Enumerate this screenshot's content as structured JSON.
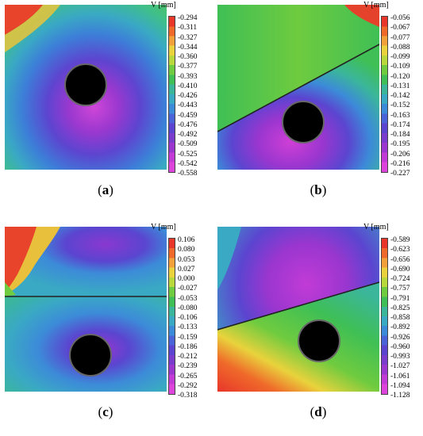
{
  "figure": {
    "panels": [
      {
        "id": "a",
        "label": "a",
        "colorbar_title": "V [mm]",
        "colorbar_ticks": [
          "-0.294",
          "-0.311",
          "-0.327",
          "-0.344",
          "-0.360",
          "-0.377",
          "-0.393",
          "-0.410",
          "-0.426",
          "-0.443",
          "-0.459",
          "-0.476",
          "-0.492",
          "-0.509",
          "-0.525",
          "-0.542",
          "-0.558"
        ],
        "crack": "none"
      },
      {
        "id": "b",
        "label": "b",
        "colorbar_title": "V [mm]",
        "colorbar_ticks": [
          "-0.056",
          "-0.067",
          "-0.077",
          "-0.088",
          "-0.099",
          "-0.109",
          "-0.120",
          "-0.131",
          "-0.142",
          "-0.152",
          "-0.163",
          "-0.174",
          "-0.184",
          "-0.195",
          "-0.206",
          "-0.216",
          "-0.227"
        ],
        "crack": "inclined-rising"
      },
      {
        "id": "c",
        "label": "c",
        "colorbar_title": "V [mm]",
        "colorbar_ticks": [
          "0.106",
          "0.080",
          "0.053",
          "0.027",
          "0.000",
          "-0.027",
          "-0.053",
          "-0.080",
          "-0.106",
          "-0.133",
          "-0.159",
          "-0.186",
          "-0.212",
          "-0.239",
          "-0.265",
          "-0.292",
          "-0.318"
        ],
        "crack": "horizontal"
      },
      {
        "id": "d",
        "label": "d",
        "colorbar_title": "V [mm]",
        "colorbar_ticks": [
          "-0.589",
          "-0.623",
          "-0.656",
          "-0.690",
          "-0.724",
          "-0.757",
          "-0.791",
          "-0.825",
          "-0.858",
          "-0.892",
          "-0.926",
          "-0.960",
          "-0.993",
          "-1.027",
          "-1.061",
          "-1.094",
          "-1.128"
        ],
        "crack": "inclined-rising"
      }
    ],
    "colormap": [
      "#e8362b",
      "#ef6a2a",
      "#f2a13a",
      "#e9d23c",
      "#b9d83c",
      "#6fcb3f",
      "#3fbf55",
      "#3bb69a",
      "#3aa9c4",
      "#3c8bd8",
      "#4a63d8",
      "#5b45d0",
      "#7a3ccd",
      "#9b36cf",
      "#c23bd6",
      "#dd44dc"
    ]
  }
}
